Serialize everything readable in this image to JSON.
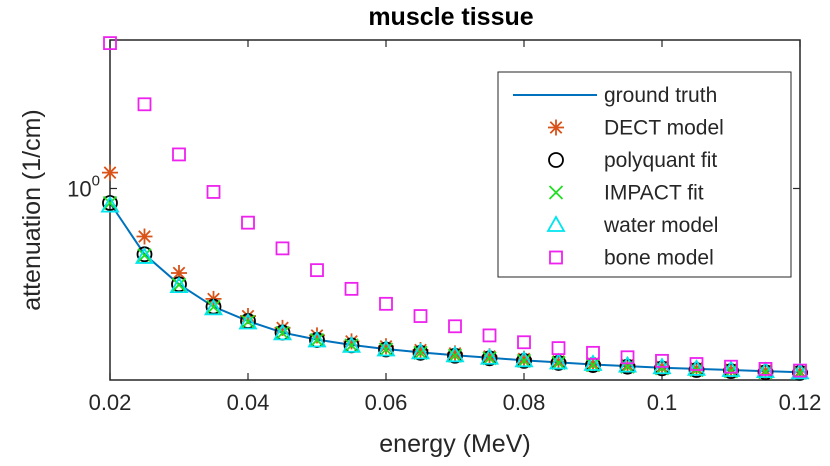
{
  "chart_data": {
    "type": "line",
    "title": "muscle tissue",
    "xlabel": "energy (MeV)",
    "ylabel": "attenuation (1/cm)",
    "xscale": "linear",
    "yscale": "log",
    "xlim": [
      0.02,
      0.12
    ],
    "ylim": [
      0.185,
      3.7
    ],
    "xticks": [
      "0.02",
      "0.04",
      "0.06",
      "0.08",
      "0.1",
      "0.12"
    ],
    "yticks": [
      {
        "base": "10",
        "exp": "0"
      }
    ],
    "grid": false,
    "legend_position": "top-right",
    "x": [
      0.02,
      0.025,
      0.03,
      0.035,
      0.04,
      0.045,
      0.05,
      0.055,
      0.06,
      0.065,
      0.07,
      0.075,
      0.08,
      0.085,
      0.09,
      0.095,
      0.1,
      0.105,
      0.11,
      0.115,
      0.12
    ],
    "series": [
      {
        "name": "ground truth",
        "marker": "line",
        "color": "#0072BD",
        "values": [
          0.88,
          0.56,
          0.43,
          0.353,
          0.311,
          0.281,
          0.264,
          0.252,
          0.243,
          0.236,
          0.23,
          0.225,
          0.22,
          0.216,
          0.212,
          0.209,
          0.206,
          0.204,
          0.202,
          0.2,
          0.198
        ]
      },
      {
        "name": "DECT model",
        "marker": "asterisk",
        "color": "#D95319",
        "values": [
          1.15,
          0.655,
          0.475,
          0.378,
          0.325,
          0.293,
          0.274,
          0.26,
          0.249,
          0.241,
          0.234,
          0.228,
          0.223,
          0.218,
          0.214,
          0.211,
          0.208,
          0.205,
          0.203,
          0.201,
          0.199
        ]
      },
      {
        "name": "polyquant fit",
        "marker": "circle",
        "color": "#000000",
        "values": [
          0.88,
          0.56,
          0.43,
          0.353,
          0.311,
          0.281,
          0.263,
          0.251,
          0.242,
          0.235,
          0.229,
          0.224,
          0.219,
          0.215,
          0.211,
          0.208,
          0.205,
          0.202,
          0.2,
          0.198,
          0.197
        ]
      },
      {
        "name": "IMPACT fit",
        "marker": "x",
        "color": "#22DD22",
        "values": [
          0.88,
          0.555,
          0.428,
          0.352,
          0.309,
          0.28,
          0.263,
          0.251,
          0.242,
          0.235,
          0.229,
          0.224,
          0.219,
          0.215,
          0.211,
          0.208,
          0.205,
          0.202,
          0.2,
          0.198,
          0.197
        ]
      },
      {
        "name": "water model",
        "marker": "triangle",
        "color": "#00E5EE",
        "values": [
          0.86,
          0.547,
          0.423,
          0.348,
          0.307,
          0.279,
          0.262,
          0.25,
          0.242,
          0.236,
          0.23,
          0.225,
          0.22,
          0.216,
          0.213,
          0.21,
          0.207,
          0.204,
          0.202,
          0.2,
          0.198
        ]
      },
      {
        "name": "bone model",
        "marker": "square",
        "color": "#EE22EE",
        "values": [
          3.6,
          2.1,
          1.35,
          0.97,
          0.74,
          0.59,
          0.487,
          0.413,
          0.362,
          0.325,
          0.297,
          0.274,
          0.258,
          0.245,
          0.235,
          0.226,
          0.219,
          0.213,
          0.208,
          0.204,
          0.201
        ]
      }
    ]
  }
}
